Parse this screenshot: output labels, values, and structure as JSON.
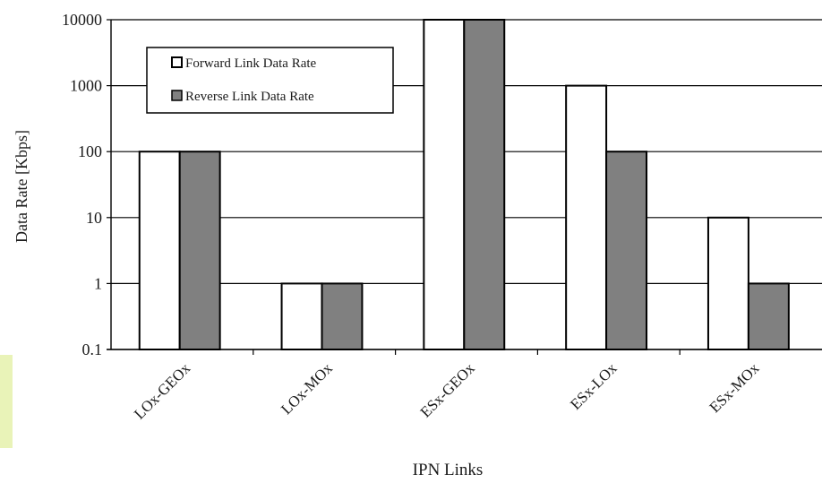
{
  "chart_data": {
    "type": "bar",
    "title": "",
    "xlabel": "IPN Links",
    "ylabel": "Data Rate [Kbps]",
    "yscale": "log",
    "ylim": [
      0.1,
      10000
    ],
    "yticks": [
      "0.1",
      "1",
      "10",
      "100",
      "1000",
      "10000"
    ],
    "grid": "horizontal",
    "legend_position": "top-left",
    "categories": [
      "LOx-GEOx",
      "LOx-MOx",
      "ESx-GEOx",
      "ESx-LOx",
      "ESx-MOx"
    ],
    "series": [
      {
        "name": "Forward Link Data Rate",
        "values": [
          100,
          1,
          10000,
          1000,
          10
        ],
        "color": "#ffffff"
      },
      {
        "name": "Reverse Link Data Rate",
        "values": [
          100,
          1,
          10000,
          100,
          1
        ],
        "color": "#808080"
      }
    ]
  }
}
